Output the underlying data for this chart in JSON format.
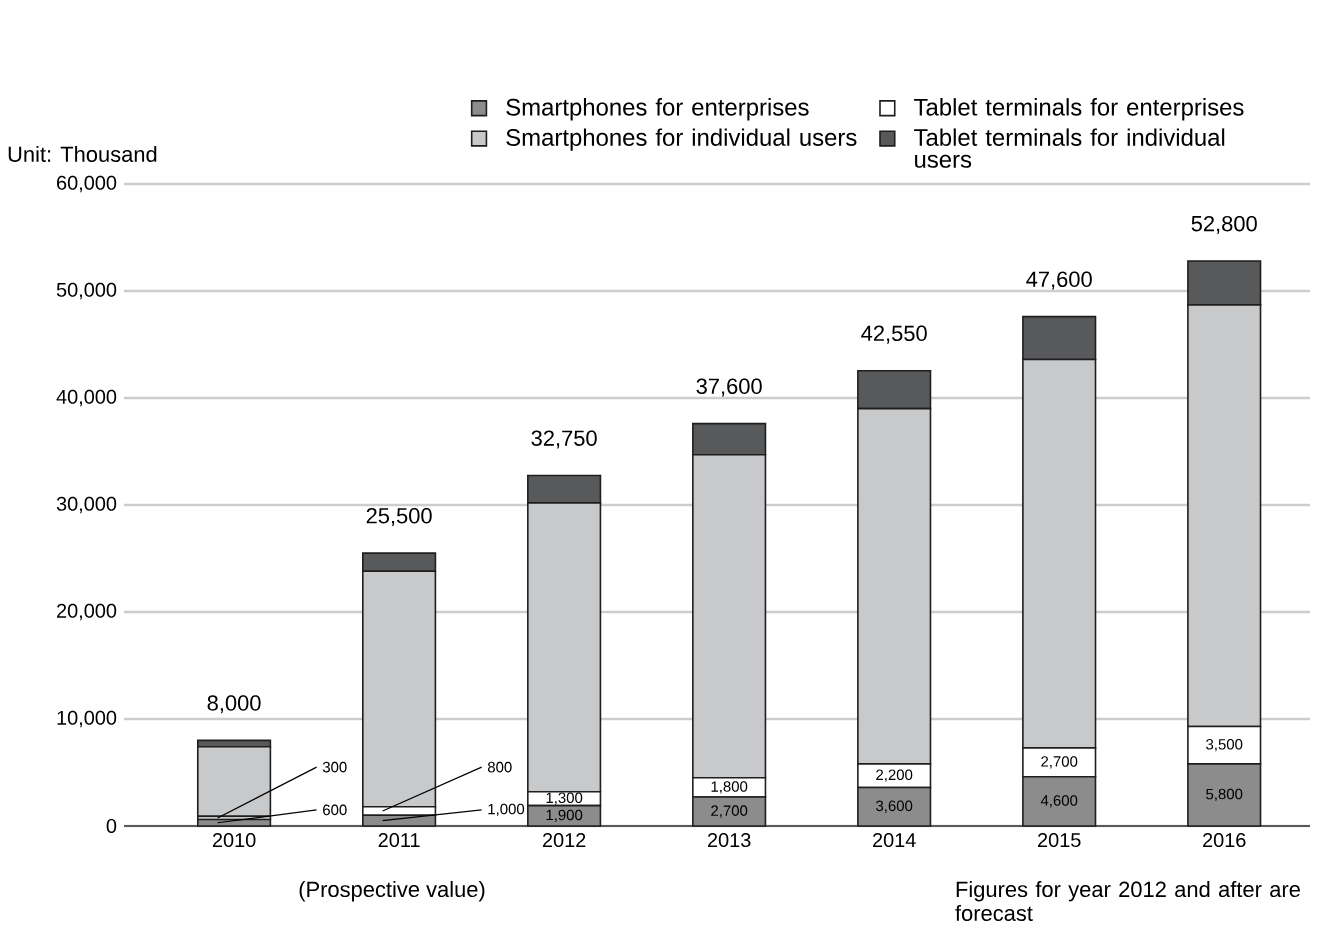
{
  "chart_data": {
    "type": "bar",
    "stacked": true,
    "categories": [
      "2010",
      "2011",
      "2012",
      "2013",
      "2014",
      "2015",
      "2016"
    ],
    "series": [
      {
        "name": "Smartphones for enterprises",
        "color": "#8c8c8c",
        "values": [
          600,
          1000,
          1900,
          2700,
          3600,
          4600,
          5800
        ],
        "value_labels": [
          "600",
          "1,000",
          "1,900",
          "2,700",
          "3,600",
          "4,600",
          "5,800"
        ]
      },
      {
        "name": "Tablet terminals for enterprises",
        "color": "#ffffff",
        "values": [
          300,
          800,
          1300,
          1800,
          2200,
          2700,
          3500
        ],
        "value_labels": [
          "300",
          "800",
          "1,300",
          "1,800",
          "2,200",
          "2,700",
          "3,500"
        ]
      },
      {
        "name": "Smartphones for individual users",
        "color": "#c8c9cb",
        "values": [
          6500,
          22000,
          27000,
          30200,
          33200,
          36300,
          39400
        ]
      },
      {
        "name": "Tablet terminals for individual users",
        "color": "#58595b",
        "values": [
          600,
          1700,
          2550,
          2900,
          3550,
          4000,
          4100
        ]
      }
    ],
    "totals": [
      "8,000",
      "25,500",
      "32,750",
      "37,600",
      "42,550",
      "47,600",
      "52,800"
    ],
    "ylim": [
      0,
      60000
    ],
    "yticks": [
      {
        "value": 0,
        "label": "0"
      },
      {
        "value": 10000,
        "label": "10,000"
      },
      {
        "value": 20000,
        "label": "20,000"
      },
      {
        "value": 30000,
        "label": "30,000"
      },
      {
        "value": 40000,
        "label": "40,000"
      },
      {
        "value": 50000,
        "label": "50,000"
      },
      {
        "value": 60000,
        "label": "60,000"
      }
    ],
    "grid": "y",
    "legend": "top",
    "annotations": [
      "Unit: Thousand",
      "(Prospective value)",
      "Figures for year 2012 and after are forecast"
    ]
  }
}
